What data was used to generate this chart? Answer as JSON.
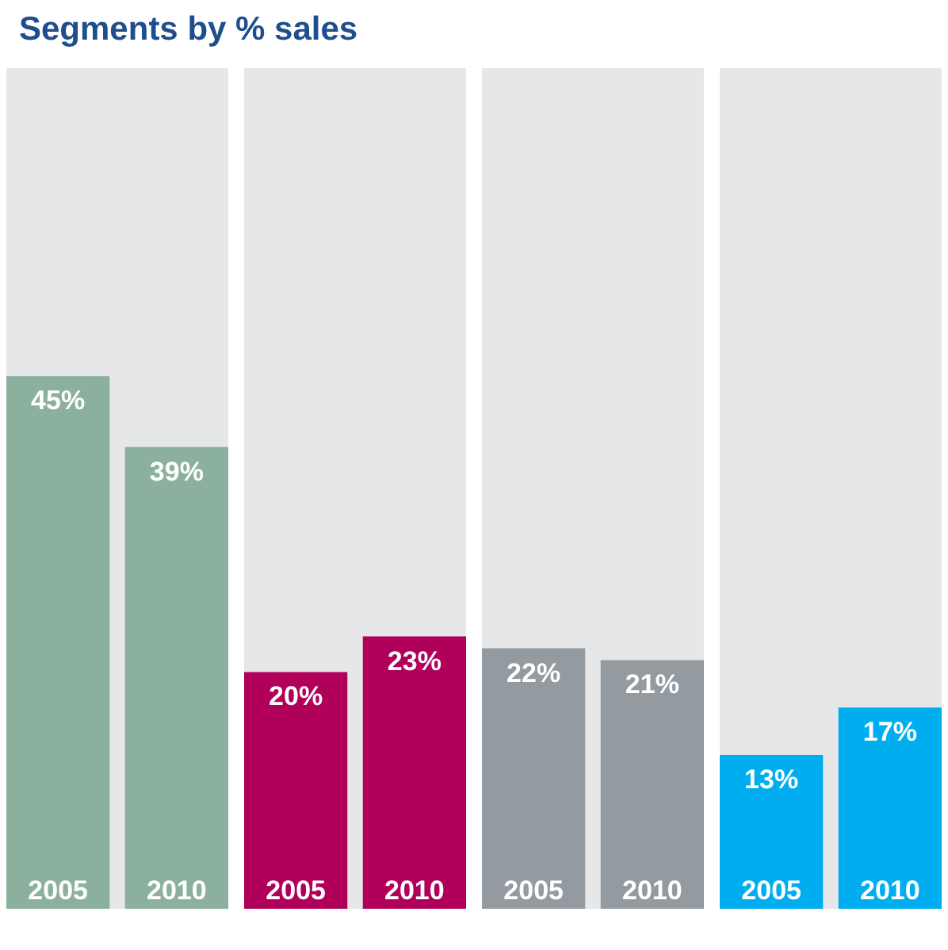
{
  "chart_data": [
    {
      "type": "bar",
      "title": "Segments by % sales",
      "categories": [
        "2005",
        "2010"
      ],
      "values": [
        45,
        39
      ],
      "colors": [
        "#8cb09e",
        "#8cb09e"
      ],
      "value_labels": [
        "45%",
        "39%"
      ],
      "ylim": [
        0,
        71
      ]
    },
    {
      "type": "bar",
      "categories": [
        "2005",
        "2010"
      ],
      "values": [
        20,
        23
      ],
      "colors": [
        "#b0005a",
        "#b0005a"
      ],
      "value_labels": [
        "20%",
        "23%"
      ],
      "ylim": [
        0,
        71
      ]
    },
    {
      "type": "bar",
      "categories": [
        "2005",
        "2010"
      ],
      "values": [
        22,
        21
      ],
      "colors": [
        "#939aa0",
        "#939aa0"
      ],
      "value_labels": [
        "22%",
        "21%"
      ],
      "ylim": [
        0,
        71
      ]
    },
    {
      "type": "bar",
      "categories": [
        "2005",
        "2010"
      ],
      "values": [
        13,
        17
      ],
      "colors": [
        "#00aeef",
        "#00aeef"
      ],
      "value_labels": [
        "13%",
        "17%"
      ],
      "ylim": [
        0,
        71
      ]
    }
  ]
}
